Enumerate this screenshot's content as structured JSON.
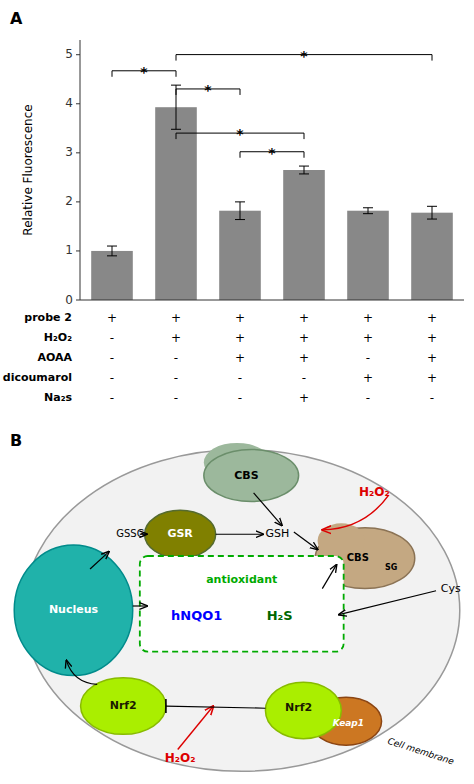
{
  "chart_data": {
    "type": "bar",
    "panel_label": "A",
    "categories": [
      null,
      null,
      null,
      null,
      null,
      null
    ],
    "values": [
      1.0,
      3.93,
      1.82,
      2.65,
      1.82,
      1.78
    ],
    "errors": [
      0.1,
      0.45,
      0.18,
      0.08,
      0.06,
      0.13
    ],
    "color": "#888888",
    "ylabel": "Relative Fluorescence",
    "ylim": [
      0,
      5.3
    ],
    "yticks": [
      0,
      1,
      2,
      3,
      4,
      5
    ],
    "grid": false,
    "tick_labels": "y",
    "annotations": [
      {
        "text": "*",
        "from": 0,
        "to": 1,
        "y": 4.55
      },
      {
        "text": "*",
        "from": 1,
        "to": 2,
        "y": 4.18
      },
      {
        "text": "*",
        "from": 1,
        "to": 3,
        "y": 3.28
      },
      {
        "text": "*",
        "from": 2,
        "to": 3,
        "y": 2.9
      },
      {
        "text": "*",
        "from": 1,
        "to": 5,
        "y": 4.88
      }
    ],
    "table": {
      "row_labels": [
        "probe 2",
        "H₂O₂",
        "AOAA",
        "dicoumarol",
        "Na₂s"
      ],
      "rows": [
        [
          "+",
          "+",
          "+",
          "+",
          "+",
          "+"
        ],
        [
          "-",
          "+",
          "+",
          "+",
          "+",
          "+"
        ],
        [
          "-",
          "-",
          "+",
          "+",
          "-",
          "+"
        ],
        [
          "-",
          "-",
          "-",
          "-",
          "+",
          "+"
        ],
        [
          "-",
          "-",
          "-",
          "+",
          "-",
          "-"
        ]
      ]
    }
  },
  "diagram": {
    "label": "B",
    "texts": [
      "Cell membrane",
      "Nucleus",
      "CBS",
      "GSR",
      "CBS",
      "SG",
      "Nrf2",
      "Nrf2",
      "Keap1",
      "antioxidant",
      "hNQO1",
      "H₂S",
      "GSSG",
      "GSH",
      "Cys",
      "H₂O₂",
      "H₂O₂"
    ]
  }
}
